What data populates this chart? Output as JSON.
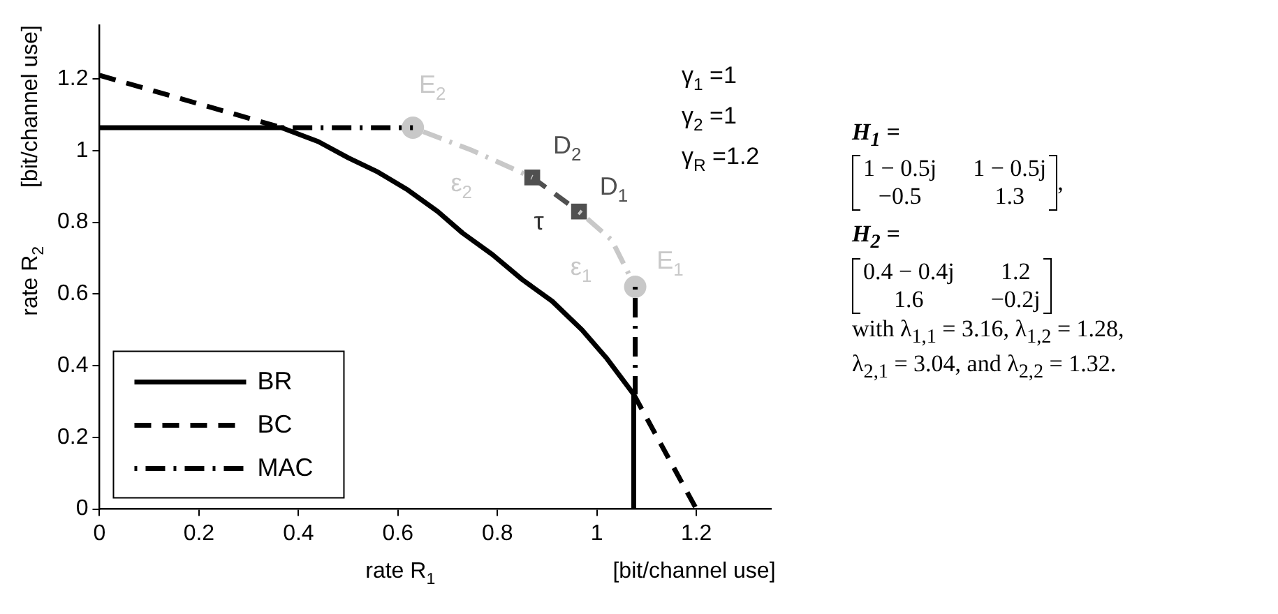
{
  "chart_data": {
    "type": "line",
    "xlabel": "rate R$_{1}$",
    "ylabel": "rate R$_{2}$",
    "xlim": [
      0,
      1.35
    ],
    "ylim": [
      0,
      1.35
    ],
    "xticks": [
      0,
      0.2,
      0.4,
      0.6,
      0.8,
      1,
      1.2
    ],
    "yticks": [
      0,
      0.2,
      0.4,
      0.6,
      0.8,
      1,
      1.2
    ],
    "grid": false,
    "legend": "bottom left",
    "series": [
      {
        "name": "BR",
        "color": "#000000",
        "line_style": "solid",
        "x": [
          0,
          0.366,
          0.44,
          0.5,
          0.56,
          0.62,
          0.68,
          0.73,
          0.79,
          0.85,
          0.91,
          0.97,
          1.02,
          1.074,
          1.074
        ],
        "values": [
          1.064,
          1.064,
          1.025,
          0.98,
          0.94,
          0.89,
          0.83,
          0.77,
          0.71,
          0.64,
          0.58,
          0.5,
          0.42,
          0.32,
          0
        ]
      },
      {
        "name": "BC",
        "color": "#000000",
        "line_style": "dashed",
        "x": [
          0,
          0.366,
          0.7,
          1.074,
          1.2
        ],
        "values": [
          1.21,
          1.064,
          null,
          0.32,
          0
        ]
      },
      {
        "name": "MAC",
        "type": "line",
        "color": "#000000",
        "line_style": "dashdot",
        "x": [
          0.366,
          0.63,
          0.85,
          1.077,
          1.077
        ],
        "values": [
          1.064,
          1.064,
          null,
          0.62,
          0.32
        ]
      },
      {
        "type": "line",
        "color": "#c8c8c8",
        "line_style": "dashdot",
        "x": [
          0.63,
          0.75,
          0.87
        ],
        "values": [
          1.064,
          1.0,
          0.925
        ]
      },
      {
        "type": "line",
        "color": "#505050",
        "line_style": "dashed",
        "x": [
          0.87,
          0.964
        ],
        "values": [
          0.925,
          0.83
        ]
      },
      {
        "type": "line",
        "color": "#c8c8c8",
        "line_style": "dashdot",
        "x": [
          0.964,
          1.03,
          1.077
        ],
        "values": [
          0.83,
          0.75,
          0.62
        ]
      },
      {
        "type": "scatter",
        "color": "#c8c8c8",
        "marker": "circle",
        "x": [
          0.63,
          1.077
        ],
        "values": [
          1.064,
          0.62
        ]
      },
      {
        "type": "scatter",
        "color": "#505050",
        "marker": "square",
        "x": [
          0.87,
          0.964
        ],
        "values": [
          0.925,
          0.83
        ]
      }
    ],
    "annotations": [
      "γ$_{1}$ =1",
      "γ$_{2}$ =1",
      "γ$_{R}$ =1.2",
      "[bit/channel use]",
      "[bit/channel use]",
      {
        "text": "E$_{2}$",
        "x": 0.63,
        "y": 1.064
      },
      {
        "text": "D$_{2}$",
        "x": 0.87,
        "y": 0.925
      },
      {
        "text": "D$_{1}$",
        "x": 0.964,
        "y": 0.83
      },
      {
        "text": "E$_{1}$",
        "x": 1.077,
        "y": 0.62
      },
      {
        "text": "ε$_{2}$",
        "x": 0.75,
        "y": 1.0
      },
      {
        "text": "τ",
        "x": 0.917,
        "y": 0.8775
      },
      {
        "text": "ε$_{1}$",
        "x": 1.03,
        "y": 0.75
      },
      "H$_{1}$ =",
      "1 − 0.5j",
      "1 − 0.5j",
      "−0.5",
      "1.3",
      ",",
      "H$_{2}$ =",
      "0.4 − 0.4j",
      "1.2",
      "1.6",
      "−0.2j",
      "with λ$_{1,1}$ = 3.16, λ$_{1,2}$ = 1.28,",
      "λ$_{2,1}$ = 3.04, and λ$_{2,2}$ = 1.32."
    ]
  }
}
